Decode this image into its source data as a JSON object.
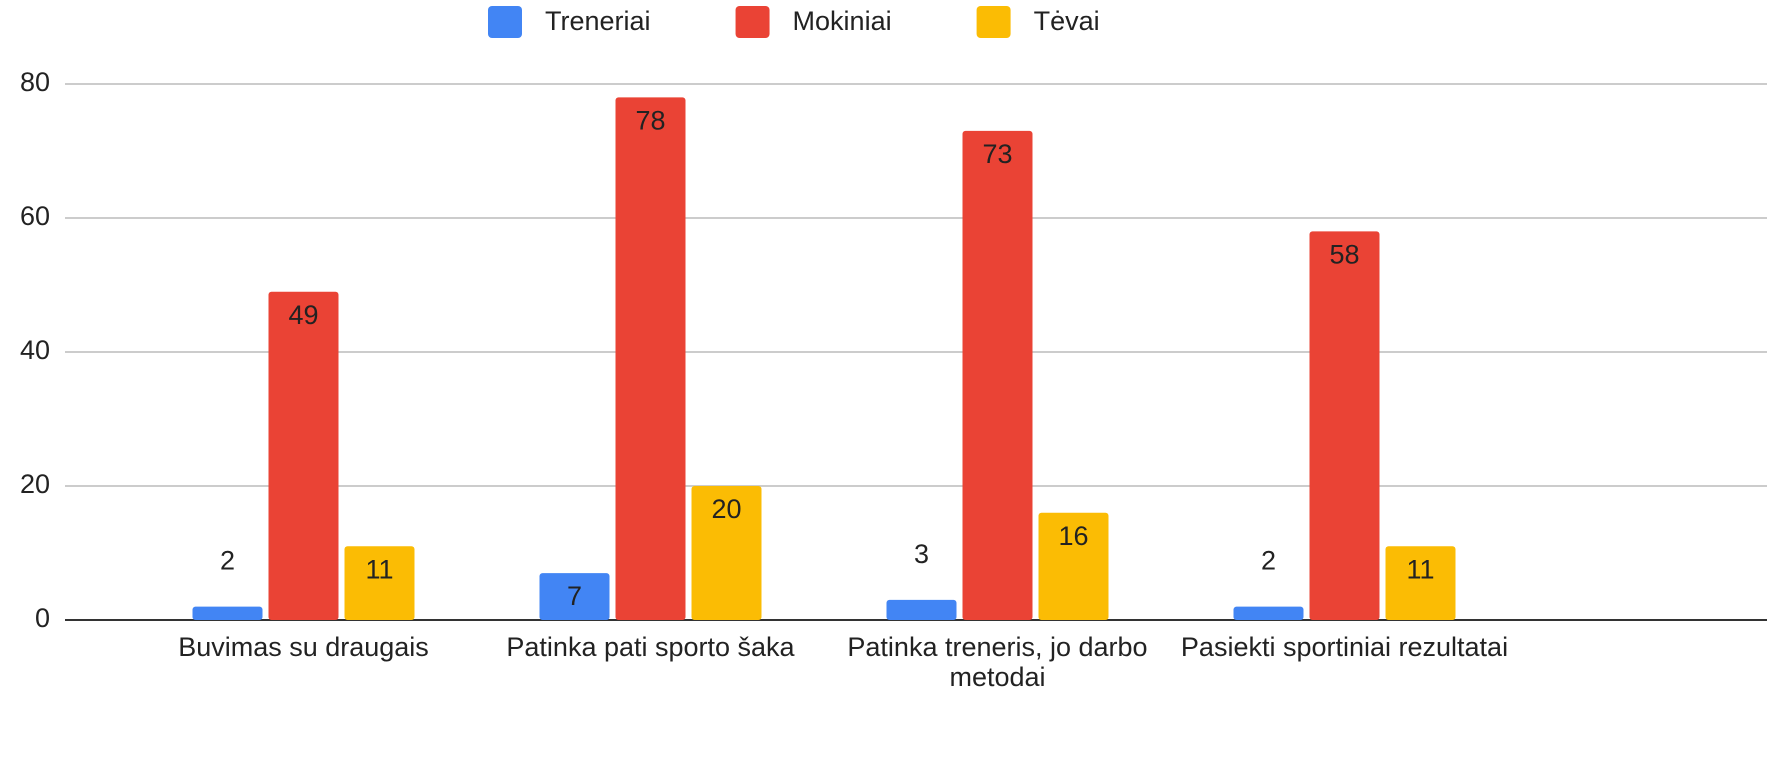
{
  "chart_data": {
    "type": "bar",
    "categories": [
      "Buvimas su draugais",
      "Patinka pati sporto šaka",
      "Patinka treneris, jo darbo metodai",
      "Pasiekti sportiniai rezultatai"
    ],
    "series": [
      {
        "name": "Treneriai",
        "color": "#4285f4",
        "values": [
          2,
          7,
          3,
          2
        ]
      },
      {
        "name": "Mokiniai",
        "color": "#ea4335",
        "values": [
          49,
          78,
          73,
          58
        ]
      },
      {
        "name": "Tėvai",
        "color": "#fbbc04",
        "values": [
          11,
          20,
          16,
          11
        ]
      }
    ],
    "ylim": [
      0,
      80
    ],
    "yticks": [
      0,
      20,
      40,
      60,
      80
    ],
    "grid": true,
    "legend": "top"
  }
}
